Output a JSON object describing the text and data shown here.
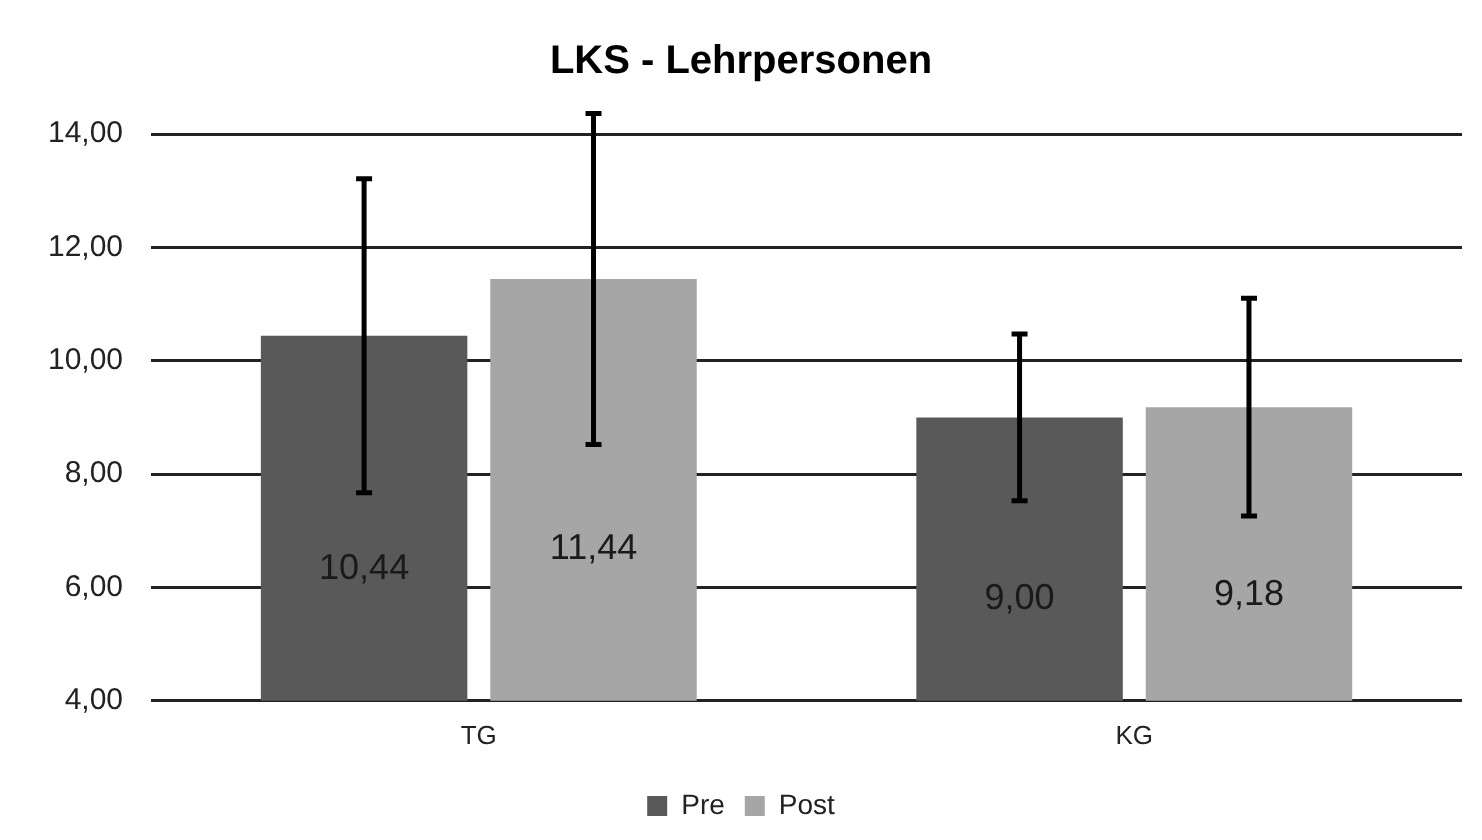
{
  "chart_data": {
    "type": "bar",
    "title": "LKS - Lehrpersonen",
    "categories": [
      "TG",
      "KG"
    ],
    "series": [
      {
        "name": "Pre",
        "color": "#595959",
        "values": [
          10.44,
          9.0
        ],
        "errors": [
          2.77,
          1.47
        ],
        "value_labels": [
          "10,44",
          "9,00"
        ]
      },
      {
        "name": "Post",
        "color": "#a6a6a6",
        "values": [
          11.44,
          9.18
        ],
        "errors": [
          2.92,
          1.92
        ],
        "value_labels": [
          "11,44",
          "9,18"
        ]
      }
    ],
    "ylim": [
      4,
      14
    ],
    "yticks": [
      {
        "value": 4,
        "label": "4,00"
      },
      {
        "value": 6,
        "label": "6,00"
      },
      {
        "value": 8,
        "label": "8,00"
      },
      {
        "value": 10,
        "label": "10,00"
      },
      {
        "value": 12,
        "label": "12,00"
      },
      {
        "value": 14,
        "label": "14,00"
      }
    ],
    "grid": "y",
    "legend": "bottom"
  }
}
